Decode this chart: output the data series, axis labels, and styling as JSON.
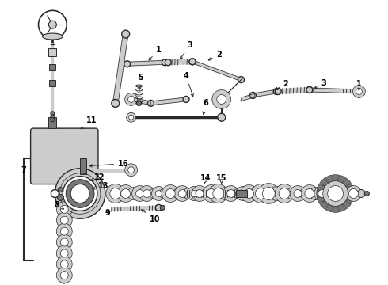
{
  "bg_color": "#ffffff",
  "lc": "#2a2a2a",
  "gray_dark": "#444444",
  "gray_mid": "#777777",
  "gray_light": "#aaaaaa",
  "gray_lighter": "#cccccc",
  "fig_width": 4.9,
  "fig_height": 3.6,
  "dpi": 100
}
